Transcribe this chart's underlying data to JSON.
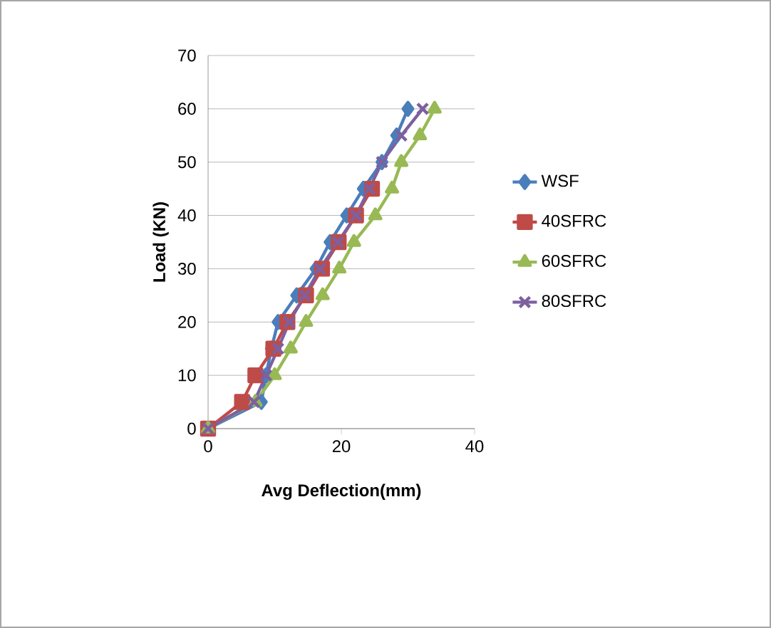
{
  "chart_data": {
    "type": "line",
    "xlabel": "Avg Deflection(mm)",
    "ylabel": "Load (KN)",
    "xlim": [
      0,
      40
    ],
    "xticks": [
      0,
      20,
      40
    ],
    "ylim": [
      0,
      70
    ],
    "yticks": [
      0,
      10,
      20,
      30,
      40,
      50,
      60,
      70
    ],
    "grid": "y",
    "legend": "right",
    "series": [
      {
        "name": "WSF",
        "color": "#4a7ebb",
        "marker": "diamond",
        "x": [
          0,
          8,
          8.7,
          9.5,
          10.5,
          13.3,
          16.2,
          18.3,
          20.8,
          23.3,
          26.1,
          28.3,
          30
        ],
        "values": [
          0,
          5,
          10,
          15,
          20,
          25,
          30,
          35,
          40,
          45,
          50,
          55,
          60
        ]
      },
      {
        "name": "40SFRC",
        "color": "#be4b48",
        "marker": "square",
        "x": [
          0,
          5.1,
          7.1,
          9.8,
          11.9,
          14.7,
          17.1,
          19.6,
          22.2,
          24.6
        ],
        "values": [
          0,
          5,
          10,
          15,
          20,
          25,
          30,
          35,
          40,
          45
        ]
      },
      {
        "name": "60SFRC",
        "color": "#98b954",
        "marker": "triangle",
        "x": [
          0,
          7.1,
          10,
          12.4,
          14.7,
          17.2,
          19.7,
          21.9,
          25.1,
          27.6,
          29,
          31.8,
          34
        ],
        "values": [
          0,
          5,
          10,
          15,
          20,
          25,
          30,
          35,
          40,
          45,
          50,
          55,
          60
        ]
      },
      {
        "name": "80SFRC",
        "color": "#7d60a0",
        "marker": "cross",
        "x": [
          0,
          6.9,
          8.7,
          10.5,
          12.2,
          14.5,
          16.8,
          19.5,
          22.2,
          24.2,
          26.1,
          29,
          32.2
        ],
        "values": [
          0,
          5,
          10,
          15,
          20,
          25,
          30,
          35,
          40,
          45,
          50,
          55,
          60
        ]
      }
    ]
  }
}
